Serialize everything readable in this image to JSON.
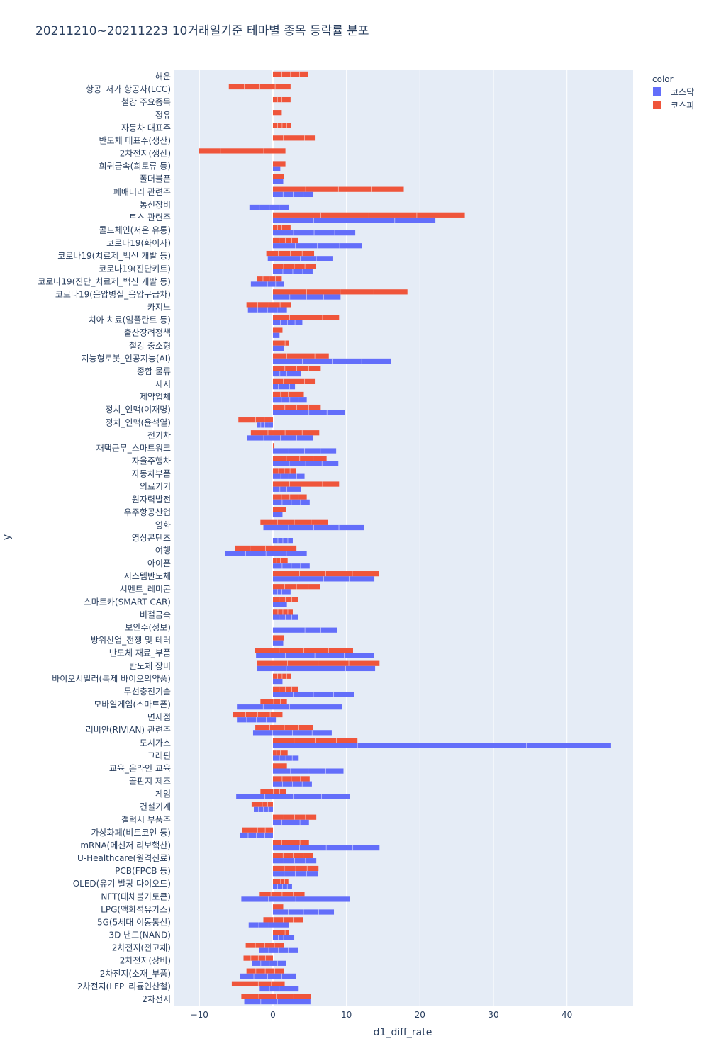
{
  "chart_data": {
    "type": "bar",
    "orientation": "horizontal",
    "barmode": "group",
    "title": "20211210~20211223 10거래일기준 테마별 종목 등락률 분포",
    "xlabel": "d1_diff_rate",
    "ylabel": "y",
    "xlim": [
      -13.5,
      49
    ],
    "x_ticks": [
      -10,
      0,
      10,
      20,
      30,
      40
    ],
    "legend_title": "color",
    "legend_position": "top-right",
    "colors": {
      "kosdaq": "#636efa",
      "kospi": "#ef553b",
      "plot_bg": "#e5ecf6",
      "grid": "#ffffff",
      "text": "#2a3f5f"
    },
    "series": [
      {
        "name": "코스닥",
        "key": "kosdaq"
      },
      {
        "name": "코스피",
        "key": "kospi"
      }
    ],
    "categories": [
      {
        "label": "해운",
        "kosdaq": null,
        "kospi": [
          0,
          4.8
        ]
      },
      {
        "label": "항공_저가 항공사(LCC)",
        "kosdaq": null,
        "kospi": [
          -6,
          2.4
        ]
      },
      {
        "label": "철강 주요종목",
        "kosdaq": null,
        "kospi": [
          0,
          2.4
        ]
      },
      {
        "label": "정유",
        "kosdaq": null,
        "kospi": [
          0,
          1.2
        ]
      },
      {
        "label": "자동차 대표주",
        "kosdaq": null,
        "kospi": [
          0,
          2.5
        ]
      },
      {
        "label": "반도체 대표주(생산)",
        "kosdaq": null,
        "kospi": [
          0,
          5.7
        ]
      },
      {
        "label": "2차전지(생산)",
        "kosdaq": null,
        "kospi": [
          -10.1,
          1.7
        ]
      },
      {
        "label": "희귀금속(희토류 등)",
        "kosdaq": [
          0,
          1
        ],
        "kospi": [
          0,
          1.7
        ]
      },
      {
        "label": "폴더블폰",
        "kosdaq": [
          0,
          1.4
        ],
        "kospi": [
          0,
          1.5
        ]
      },
      {
        "label": "폐배터리 관련주",
        "kosdaq": [
          0,
          5.5
        ],
        "kospi": [
          0,
          17.8
        ]
      },
      {
        "label": "통신장비",
        "kosdaq": [
          -3.2,
          2.2
        ],
        "kospi": null
      },
      {
        "label": "토스 관련주",
        "kosdaq": [
          0,
          22.1
        ],
        "kospi": [
          0,
          26.1
        ]
      },
      {
        "label": "콜드체인(저온 유통)",
        "kosdaq": [
          0,
          11.2
        ],
        "kospi": [
          0,
          2.4
        ]
      },
      {
        "label": "코로나19(화이자)",
        "kosdaq": [
          0,
          12.1
        ],
        "kospi": [
          0,
          3.4
        ]
      },
      {
        "label": "코로나19(치료제_백신 개발 등)",
        "kosdaq": [
          -0.7,
          8.1
        ],
        "kospi": [
          -0.9,
          5.6
        ]
      },
      {
        "label": "코로나19(진단키트)",
        "kosdaq": [
          0,
          5.4
        ],
        "kospi": [
          0,
          5.8
        ]
      },
      {
        "label": "코로나19(진단_치료제_백신 개발 등)",
        "kosdaq": [
          -3,
          1.5
        ],
        "kospi": [
          -2.2,
          1.2
        ]
      },
      {
        "label": "코로나19(음압병실_음압구급차)",
        "kosdaq": [
          0,
          9.2
        ],
        "kospi": [
          0,
          18.3
        ]
      },
      {
        "label": "카지노",
        "kosdaq": [
          -3.4,
          1.9
        ],
        "kospi": [
          -3.6,
          2.5
        ]
      },
      {
        "label": "치아 치료(임플란트 등)",
        "kosdaq": [
          0,
          4
        ],
        "kospi": [
          0,
          9
        ]
      },
      {
        "label": "출산장려정책",
        "kosdaq": [
          0,
          0.9
        ],
        "kospi": [
          0,
          1.3
        ]
      },
      {
        "label": "철강 중소형",
        "kosdaq": [
          0,
          1.5
        ],
        "kospi": [
          0,
          2.2
        ]
      },
      {
        "label": "지능형로봇_인공지능(AI)",
        "kosdaq": [
          0,
          16.1
        ],
        "kospi": [
          0,
          7.6
        ]
      },
      {
        "label": "종합 물류",
        "kosdaq": [
          0,
          3.8
        ],
        "kospi": [
          0,
          6.5
        ]
      },
      {
        "label": "제지",
        "kosdaq": [
          0,
          3
        ],
        "kospi": [
          0,
          5.7
        ]
      },
      {
        "label": "제약업체",
        "kosdaq": [
          0,
          4.6
        ],
        "kospi": [
          0,
          4.2
        ]
      },
      {
        "label": "정치_인맥(이재명)",
        "kosdaq": [
          0,
          9.8
        ],
        "kospi": [
          0,
          6.5
        ]
      },
      {
        "label": "정치_인맥(윤석열)",
        "kosdaq": [
          -2.2,
          0
        ],
        "kospi": [
          -4.7,
          0
        ]
      },
      {
        "label": "전기차",
        "kosdaq": [
          -3.5,
          5.5
        ],
        "kospi": [
          -3,
          6.3
        ]
      },
      {
        "label": "재택근무_스마트워크",
        "kosdaq": [
          0,
          8.6
        ],
        "kospi": [
          0,
          0.2
        ]
      },
      {
        "label": "자율주행차",
        "kosdaq": [
          0,
          8.9
        ],
        "kospi": [
          0,
          7.3
        ]
      },
      {
        "label": "자동차부품",
        "kosdaq": [
          0,
          4.3
        ],
        "kospi": [
          0,
          3.1
        ]
      },
      {
        "label": "의료기기",
        "kosdaq": [
          0,
          3.8
        ],
        "kospi": [
          0,
          9
        ]
      },
      {
        "label": "원자력발전",
        "kosdaq": [
          0,
          5
        ],
        "kospi": [
          0,
          4.6
        ]
      },
      {
        "label": "우주항공산업",
        "kosdaq": [
          0,
          1.3
        ],
        "kospi": [
          0,
          1.8
        ]
      },
      {
        "label": "영화",
        "kosdaq": [
          -1.3,
          12.4
        ],
        "kospi": [
          -1.7,
          7.5
        ]
      },
      {
        "label": "영상콘텐츠",
        "kosdaq": [
          0,
          2.7
        ],
        "kospi": null
      },
      {
        "label": "여행",
        "kosdaq": [
          -6.5,
          4.6
        ],
        "kospi": [
          -5.2,
          3.2
        ]
      },
      {
        "label": "아이폰",
        "kosdaq": [
          0,
          5
        ],
        "kospi": [
          0,
          2
        ]
      },
      {
        "label": "시스템반도체",
        "kosdaq": [
          0,
          13.8
        ],
        "kospi": [
          0,
          14.4
        ]
      },
      {
        "label": "시멘트_레미콘",
        "kosdaq": [
          0,
          2.4
        ],
        "kospi": [
          0,
          6.4
        ]
      },
      {
        "label": "스마트카(SMART CAR)",
        "kosdaq": [
          0,
          1.9
        ],
        "kospi": [
          0,
          3.4
        ]
      },
      {
        "label": "비철금속",
        "kosdaq": [
          0,
          3.4
        ],
        "kospi": [
          0,
          2.7
        ]
      },
      {
        "label": "보안주(정보)",
        "kosdaq": [
          0,
          8.7
        ],
        "kospi": null
      },
      {
        "label": "방위산업_전쟁 및 테러",
        "kosdaq": [
          0,
          1.4
        ],
        "kospi": [
          0,
          1.5
        ]
      },
      {
        "label": "반도체 재료_부품",
        "kosdaq": [
          -2.3,
          13.7
        ],
        "kospi": [
          -2.5,
          10.9
        ]
      },
      {
        "label": "반도체 장비",
        "kosdaq": [
          -2.2,
          13.9
        ],
        "kospi": [
          -2.2,
          14.5
        ]
      },
      {
        "label": "바이오시밀러(복제 바이오의약품)",
        "kosdaq": [
          0,
          1.3
        ],
        "kospi": [
          0,
          2.5
        ]
      },
      {
        "label": "무선충전기술",
        "kosdaq": [
          0,
          11
        ],
        "kospi": [
          0,
          3.4
        ]
      },
      {
        "label": "모바일게임(스마트폰)",
        "kosdaq": [
          -4.9,
          9.4
        ],
        "kospi": [
          -1.7,
          1.9
        ]
      },
      {
        "label": "면세점",
        "kosdaq": [
          -4.9,
          0.4
        ],
        "kospi": [
          -5.4,
          1.3
        ]
      },
      {
        "label": "리비안(RIVIAN) 관련주",
        "kosdaq": [
          -2.7,
          8
        ],
        "kospi": [
          -2.4,
          5.5
        ]
      },
      {
        "label": "도시가스",
        "kosdaq": [
          0,
          46
        ],
        "kospi": [
          0,
          11.5
        ]
      },
      {
        "label": "그래핀",
        "kosdaq": [
          0,
          3.5
        ],
        "kospi": [
          0,
          2
        ]
      },
      {
        "label": "교육_온라인 교육",
        "kosdaq": [
          0,
          9.6
        ],
        "kospi": [
          0,
          1.9
        ]
      },
      {
        "label": "골판지 제조",
        "kosdaq": [
          0,
          5.3
        ],
        "kospi": [
          0,
          5
        ]
      },
      {
        "label": "게임",
        "kosdaq": [
          -5,
          10.5
        ],
        "kospi": [
          -1.7,
          1.8
        ]
      },
      {
        "label": "건설기계",
        "kosdaq": [
          -2.6,
          0
        ],
        "kospi": [
          -2.9,
          0
        ]
      },
      {
        "label": "갤럭시 부품주",
        "kosdaq": [
          0,
          4.9
        ],
        "kospi": [
          0,
          5.9
        ]
      },
      {
        "label": "가상화폐(비트코인 등)",
        "kosdaq": [
          -4.5,
          0
        ],
        "kospi": [
          -4.2,
          0
        ]
      },
      {
        "label": "mRNA(메신저 리보핵산)",
        "kosdaq": [
          0,
          14.5
        ],
        "kospi": [
          0,
          4.9
        ]
      },
      {
        "label": "U-Healthcare(원격진료)",
        "kosdaq": [
          0,
          5.9
        ],
        "kospi": [
          0,
          5.5
        ]
      },
      {
        "label": "PCB(FPCB 등)",
        "kosdaq": [
          0,
          6.1
        ],
        "kospi": [
          0,
          6.2
        ]
      },
      {
        "label": "OLED(유기 발광 다이오드)",
        "kosdaq": [
          0,
          2.6
        ],
        "kospi": [
          0,
          2.1
        ]
      },
      {
        "label": "NFT(대체불가토큰)",
        "kosdaq": [
          -4.3,
          10.5
        ],
        "kospi": [
          -1.8,
          4.3
        ]
      },
      {
        "label": "LPG(액화석유가스)",
        "kosdaq": [
          0,
          8.3
        ],
        "kospi": [
          0,
          1.4
        ]
      },
      {
        "label": "5G(5세대 이동통신)",
        "kosdaq": [
          -3.3,
          2.2
        ],
        "kospi": [
          -1.3,
          4.1
        ]
      },
      {
        "label": "3D 낸드(NAND)",
        "kosdaq": [
          0,
          2.9
        ],
        "kospi": [
          0,
          2.2
        ]
      },
      {
        "label": "2차전지(전고체)",
        "kosdaq": [
          -1.9,
          3.4
        ],
        "kospi": [
          -3.7,
          1.5
        ]
      },
      {
        "label": "2차전지(장비)",
        "kosdaq": [
          -2.8,
          1.8
        ],
        "kospi": [
          -4,
          0
        ]
      },
      {
        "label": "2차전지(소재_부품)",
        "kosdaq": [
          -4.5,
          3.1
        ],
        "kospi": [
          -3.6,
          1.5
        ]
      },
      {
        "label": "2차전지(LFP_리튬인산철)",
        "kosdaq": [
          -1.8,
          3.5
        ],
        "kospi": [
          -5.6,
          1.6
        ]
      },
      {
        "label": "2차전지",
        "kosdaq": [
          -3.9,
          5.1
        ],
        "kospi": [
          -4.3,
          5.2
        ]
      }
    ]
  }
}
